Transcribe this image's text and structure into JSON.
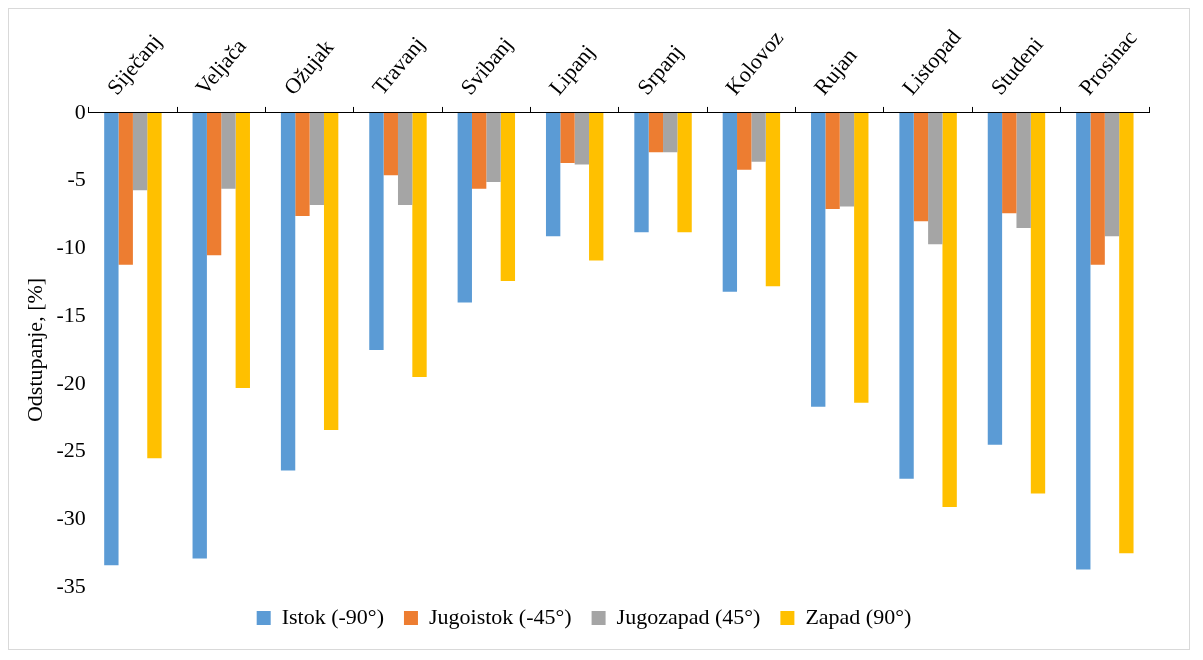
{
  "chart_data": {
    "type": "bar",
    "ylabel": "Odstupanje, [%]",
    "categories": [
      "Siječanj",
      "Veljača",
      "Ožujak",
      "Travanj",
      "Svibanj",
      "Lipanj",
      "Srpanj",
      "Kolovoz",
      "Rujan",
      "Listopad",
      "Studeni",
      "Prosinac"
    ],
    "series": [
      {
        "name": "Istok (-90°)",
        "color": "#5b9bd5",
        "values": [
          -33.4,
          -32.9,
          -26.4,
          -17.5,
          -14.0,
          -9.1,
          -8.8,
          -13.2,
          -21.7,
          -27.0,
          -24.5,
          -33.7
        ]
      },
      {
        "name": "Jugoistok (-45°)",
        "color": "#ed7d31",
        "values": [
          -11.2,
          -10.5,
          -7.6,
          -4.6,
          -5.6,
          -3.7,
          -2.9,
          -4.2,
          -7.1,
          -8.0,
          -7.4,
          -11.2
        ]
      },
      {
        "name": "Jugozapad (45°)",
        "color": "#a5a5a5",
        "values": [
          -5.7,
          -5.6,
          -6.8,
          -6.8,
          -5.1,
          -3.8,
          -2.9,
          -3.6,
          -6.9,
          -9.7,
          -8.5,
          -9.1
        ]
      },
      {
        "name": "Zapad (90°)",
        "color": "#ffc000",
        "values": [
          -25.5,
          -20.3,
          -23.4,
          -19.5,
          -12.4,
          -10.9,
          -8.8,
          -12.8,
          -21.4,
          -29.1,
          -28.1,
          -32.5
        ]
      }
    ],
    "ylim": [
      -35,
      0
    ],
    "yticks": [
      -35,
      -30,
      -25,
      -20,
      -15,
      -10,
      -5,
      0
    ],
    "legend": "bottom"
  }
}
